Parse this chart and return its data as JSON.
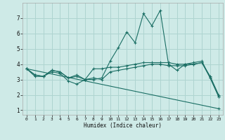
{
  "background_color": "#ceeae7",
  "grid_color": "#aed4d0",
  "line_color": "#1a6e64",
  "xlabel": "Humidex (Indice chaleur)",
  "xlim": [
    -0.5,
    23.5
  ],
  "ylim": [
    0.7,
    8.0
  ],
  "yticks": [
    1,
    2,
    3,
    4,
    5,
    6,
    7
  ],
  "xticks": [
    0,
    1,
    2,
    3,
    4,
    5,
    6,
    7,
    8,
    9,
    10,
    11,
    12,
    13,
    14,
    15,
    16,
    17,
    18,
    19,
    20,
    21,
    22,
    23
  ],
  "line1_x": [
    0,
    1,
    2,
    3,
    4,
    5,
    6,
    7,
    8,
    9,
    10,
    11,
    12,
    13,
    14,
    15,
    16,
    17,
    18,
    19,
    20,
    21,
    22,
    23
  ],
  "line1_y": [
    3.7,
    3.3,
    3.2,
    3.6,
    3.5,
    3.1,
    3.2,
    3.0,
    3.0,
    3.1,
    4.2,
    5.1,
    6.1,
    5.4,
    7.3,
    6.5,
    7.5,
    4.0,
    3.6,
    4.0,
    4.1,
    4.2,
    3.1,
    1.9
  ],
  "line2_x": [
    0,
    1,
    2,
    3,
    4,
    5,
    6,
    7,
    8,
    9,
    10,
    11,
    12,
    13,
    14,
    15,
    16,
    17,
    18,
    19,
    20,
    21,
    22,
    23
  ],
  "line2_y": [
    3.7,
    3.3,
    3.2,
    3.6,
    3.5,
    3.1,
    3.3,
    3.0,
    3.7,
    3.7,
    3.8,
    3.8,
    3.9,
    4.0,
    4.1,
    4.1,
    4.1,
    4.1,
    4.0,
    4.0,
    4.0,
    4.1,
    3.2,
    2.0
  ],
  "line3_x": [
    0,
    1,
    2,
    3,
    4,
    5,
    6,
    7,
    8,
    9,
    10,
    11,
    12,
    13,
    14,
    15,
    16,
    17,
    18,
    19,
    20,
    21,
    22,
    23
  ],
  "line3_y": [
    3.7,
    3.2,
    3.2,
    3.5,
    3.4,
    2.9,
    2.7,
    3.0,
    3.1,
    3.0,
    3.5,
    3.6,
    3.7,
    3.8,
    3.9,
    4.0,
    4.0,
    3.9,
    3.9,
    3.9,
    4.0,
    4.1,
    3.1,
    1.9
  ],
  "line4_x": [
    0,
    23
  ],
  "line4_y": [
    3.7,
    1.1
  ]
}
